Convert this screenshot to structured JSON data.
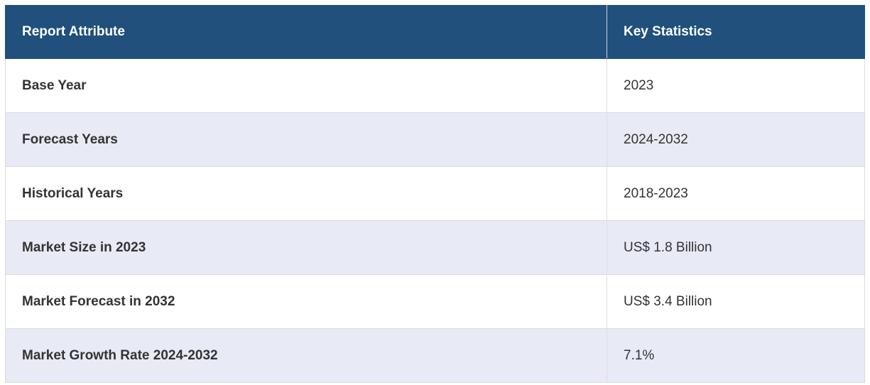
{
  "table": {
    "header": [
      "Report Attribute",
      "Key Statistics"
    ],
    "rows": [
      [
        "Base Year",
        "2023"
      ],
      [
        "Forecast Years",
        "2024-2032"
      ],
      [
        "Historical Years",
        "2018-2023"
      ],
      [
        "Market Size in 2023",
        "US$ 1.8 Billion"
      ],
      [
        "Market Forecast in 2032",
        "US$ 3.4 Billion"
      ],
      [
        "Market Growth Rate 2024-2032",
        "7.1%"
      ]
    ]
  }
}
